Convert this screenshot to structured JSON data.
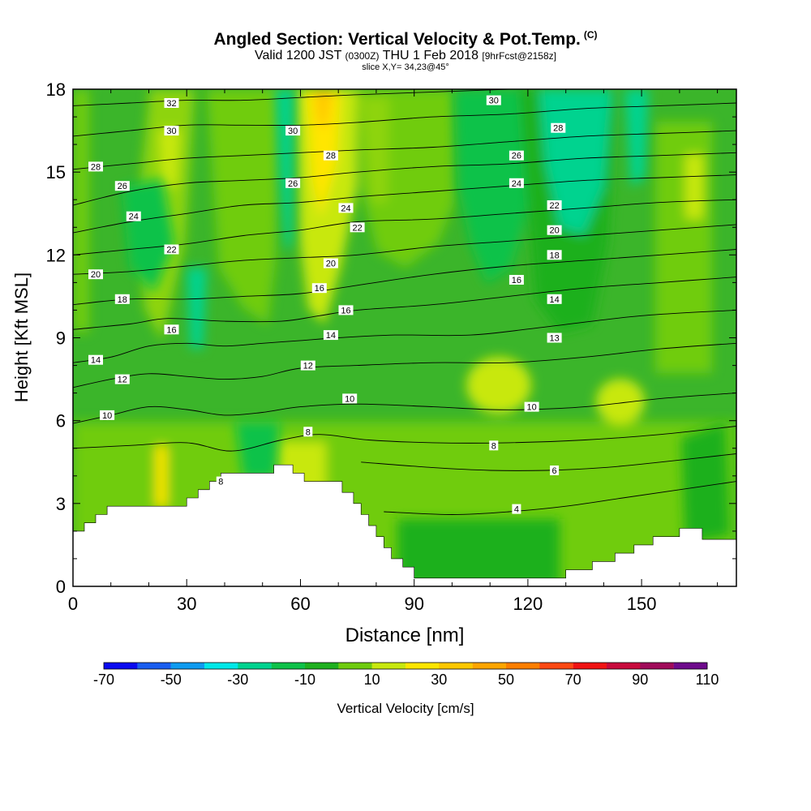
{
  "title": {
    "main": "Angled Section: Vertical Velocity & Pot.Temp.",
    "main_unit": "(C)",
    "valid_prefix": "Valid 1200 JST",
    "valid_utc": "(0300Z)",
    "valid_date": "THU 1 Feb 2018",
    "forecast": "[9hrFcst@2158z]",
    "slice": "slice X,Y= 34,23@45°"
  },
  "chart_data": {
    "type": "heatmap",
    "xlabel": "Distance [nm]",
    "ylabel": "Height [Kft MSL]",
    "xlim": [
      0,
      175
    ],
    "ylim": [
      0,
      18
    ],
    "x_ticks": [
      "0",
      "30",
      "60",
      "90",
      "120",
      "150"
    ],
    "y_ticks": [
      "0",
      "3",
      "6",
      "9",
      "12",
      "15",
      "18"
    ],
    "colorbar": {
      "label": "Vertical Velocity [cm/s]",
      "ticks": [
        "-70",
        "-50",
        "-30",
        "-10",
        "10",
        "30",
        "50",
        "70",
        "90",
        "110"
      ],
      "levels": [
        -70,
        -60,
        -50,
        -40,
        -30,
        -20,
        -10,
        0,
        10,
        20,
        30,
        40,
        50,
        60,
        70,
        80,
        90,
        100,
        110
      ],
      "colors": [
        "#0a0af0",
        "#1a5ef0",
        "#0f9bf0",
        "#00e8e8",
        "#00d38f",
        "#0fc24a",
        "#1fb01f",
        "#6fcc0f",
        "#c8e80f",
        "#ffe600",
        "#ffc800",
        "#ffa500",
        "#ff7f00",
        "#ff4a14",
        "#f01414",
        "#c80a3c",
        "#a00a5a",
        "#6e0a8c"
      ]
    },
    "terrain_kft": [
      [
        0,
        2
      ],
      [
        3,
        2
      ],
      [
        3,
        2.3
      ],
      [
        6,
        2.3
      ],
      [
        6,
        2.6
      ],
      [
        9,
        2.6
      ],
      [
        9,
        2.9
      ],
      [
        30,
        2.9
      ],
      [
        30,
        3.2
      ],
      [
        33,
        3.2
      ],
      [
        33,
        3.5
      ],
      [
        36,
        3.5
      ],
      [
        36,
        3.8
      ],
      [
        39,
        3.8
      ],
      [
        39,
        4.1
      ],
      [
        53,
        4.1
      ],
      [
        53,
        4.4
      ],
      [
        58,
        4.4
      ],
      [
        58,
        4.1
      ],
      [
        61,
        4.1
      ],
      [
        61,
        3.8
      ],
      [
        71,
        3.8
      ],
      [
        71,
        3.4
      ],
      [
        74,
        3.4
      ],
      [
        74,
        3.0
      ],
      [
        76,
        3.0
      ],
      [
        76,
        2.6
      ],
      [
        78,
        2.6
      ],
      [
        78,
        2.2
      ],
      [
        80,
        2.2
      ],
      [
        80,
        1.8
      ],
      [
        82,
        1.8
      ],
      [
        82,
        1.4
      ],
      [
        84,
        1.4
      ],
      [
        84,
        1.0
      ],
      [
        87,
        1.0
      ],
      [
        87,
        0.7
      ],
      [
        90,
        0.7
      ],
      [
        90,
        0.3
      ],
      [
        130,
        0.3
      ],
      [
        130,
        0.6
      ],
      [
        137,
        0.6
      ],
      [
        137,
        0.9
      ],
      [
        143,
        0.9
      ],
      [
        143,
        1.2
      ],
      [
        148,
        1.2
      ],
      [
        148,
        1.5
      ],
      [
        153,
        1.5
      ],
      [
        153,
        1.8
      ],
      [
        160,
        1.8
      ],
      [
        160,
        2.1
      ],
      [
        166,
        2.1
      ],
      [
        166,
        1.7
      ],
      [
        175,
        1.7
      ]
    ],
    "contours": [
      {
        "level": 4,
        "points": [
          [
            82,
            2.7
          ],
          [
            100,
            2.6
          ],
          [
            115,
            2.7
          ],
          [
            130,
            2.9
          ],
          [
            145,
            3.2
          ],
          [
            160,
            3.5
          ],
          [
            175,
            3.8
          ]
        ]
      },
      {
        "level": 6,
        "points": [
          [
            76,
            4.5
          ],
          [
            95,
            4.3
          ],
          [
            110,
            4.2
          ],
          [
            125,
            4.2
          ],
          [
            140,
            4.3
          ],
          [
            155,
            4.5
          ],
          [
            175,
            4.8
          ]
        ]
      },
      {
        "level": 8,
        "points": [
          [
            0,
            5.0
          ],
          [
            15,
            5.1
          ],
          [
            30,
            5.2
          ],
          [
            42,
            4.9
          ],
          [
            55,
            5.3
          ],
          [
            65,
            5.5
          ],
          [
            78,
            5.3
          ],
          [
            95,
            5.2
          ],
          [
            115,
            5.2
          ],
          [
            135,
            5.3
          ],
          [
            155,
            5.5
          ],
          [
            175,
            5.8
          ]
        ]
      },
      {
        "level": 10,
        "points": [
          [
            0,
            5.9
          ],
          [
            10,
            6.2
          ],
          [
            20,
            6.5
          ],
          [
            30,
            6.4
          ],
          [
            40,
            6.2
          ],
          [
            50,
            6.3
          ],
          [
            60,
            6.5
          ],
          [
            75,
            6.6
          ],
          [
            95,
            6.5
          ],
          [
            110,
            6.4
          ],
          [
            120,
            6.4
          ],
          [
            135,
            6.5
          ],
          [
            155,
            6.8
          ],
          [
            175,
            7.0
          ]
        ]
      },
      {
        "level": 12,
        "points": [
          [
            0,
            7.2
          ],
          [
            10,
            7.5
          ],
          [
            20,
            7.7
          ],
          [
            30,
            7.6
          ],
          [
            40,
            7.5
          ],
          [
            50,
            7.6
          ],
          [
            60,
            7.9
          ],
          [
            75,
            8.0
          ],
          [
            95,
            8.1
          ],
          [
            115,
            8.1
          ],
          [
            135,
            8.3
          ],
          [
            155,
            8.6
          ],
          [
            175,
            8.8
          ]
        ]
      },
      {
        "level": 14,
        "points": [
          [
            0,
            8.1
          ],
          [
            10,
            8.3
          ],
          [
            20,
            8.7
          ],
          [
            30,
            8.8
          ],
          [
            40,
            8.7
          ],
          [
            50,
            8.8
          ],
          [
            60,
            8.9
          ],
          [
            70,
            9.0
          ],
          [
            85,
            9.1
          ],
          [
            105,
            9.1
          ],
          [
            125,
            9.4
          ],
          [
            150,
            9.8
          ],
          [
            175,
            10.0
          ]
        ]
      },
      {
        "level": 16,
        "points": [
          [
            0,
            9.3
          ],
          [
            15,
            9.5
          ],
          [
            25,
            9.7
          ],
          [
            40,
            9.6
          ],
          [
            55,
            9.6
          ],
          [
            65,
            9.8
          ],
          [
            75,
            10.0
          ],
          [
            95,
            10.2
          ],
          [
            115,
            10.5
          ],
          [
            135,
            10.8
          ],
          [
            155,
            11.0
          ],
          [
            175,
            11.2
          ]
        ]
      },
      {
        "level": 18,
        "points": [
          [
            0,
            10.2
          ],
          [
            15,
            10.4
          ],
          [
            30,
            10.4
          ],
          [
            45,
            10.5
          ],
          [
            60,
            10.6
          ],
          [
            75,
            10.9
          ],
          [
            95,
            11.3
          ],
          [
            115,
            11.6
          ],
          [
            135,
            11.8
          ],
          [
            155,
            12.0
          ],
          [
            175,
            12.2
          ]
        ]
      },
      {
        "level": 20,
        "points": [
          [
            0,
            11.3
          ],
          [
            15,
            11.4
          ],
          [
            30,
            11.6
          ],
          [
            45,
            11.8
          ],
          [
            60,
            11.9
          ],
          [
            75,
            12.0
          ],
          [
            95,
            12.3
          ],
          [
            115,
            12.5
          ],
          [
            135,
            12.7
          ],
          [
            155,
            12.9
          ],
          [
            175,
            13.1
          ]
        ]
      },
      {
        "level": 22,
        "points": [
          [
            0,
            12.0
          ],
          [
            15,
            12.2
          ],
          [
            30,
            12.4
          ],
          [
            45,
            12.7
          ],
          [
            60,
            12.9
          ],
          [
            75,
            13.2
          ],
          [
            95,
            13.3
          ],
          [
            115,
            13.5
          ],
          [
            135,
            13.7
          ],
          [
            155,
            13.9
          ],
          [
            175,
            14.0
          ]
        ]
      },
      {
        "level": 24,
        "points": [
          [
            0,
            12.8
          ],
          [
            15,
            13.2
          ],
          [
            30,
            13.5
          ],
          [
            45,
            13.8
          ],
          [
            60,
            13.9
          ],
          [
            75,
            14.1
          ],
          [
            95,
            14.3
          ],
          [
            115,
            14.5
          ],
          [
            135,
            14.7
          ],
          [
            155,
            14.8
          ],
          [
            175,
            14.9
          ]
        ]
      },
      {
        "level": 26,
        "points": [
          [
            0,
            13.8
          ],
          [
            15,
            14.3
          ],
          [
            30,
            14.6
          ],
          [
            45,
            14.7
          ],
          [
            60,
            14.8
          ],
          [
            75,
            15.0
          ],
          [
            95,
            15.2
          ],
          [
            115,
            15.3
          ],
          [
            135,
            15.5
          ],
          [
            155,
            15.6
          ],
          [
            175,
            15.7
          ]
        ]
      },
      {
        "level": 28,
        "points": [
          [
            0,
            15.1
          ],
          [
            15,
            15.3
          ],
          [
            30,
            15.5
          ],
          [
            45,
            15.6
          ],
          [
            60,
            15.7
          ],
          [
            75,
            15.8
          ],
          [
            95,
            15.9
          ],
          [
            115,
            16.1
          ],
          [
            135,
            16.3
          ],
          [
            155,
            16.4
          ],
          [
            175,
            16.5
          ]
        ]
      },
      {
        "level": 30,
        "points": [
          [
            0,
            16.3
          ],
          [
            15,
            16.5
          ],
          [
            30,
            16.7
          ],
          [
            45,
            16.7
          ],
          [
            60,
            16.7
          ],
          [
            75,
            16.8
          ],
          [
            95,
            17.0
          ],
          [
            115,
            17.1
          ],
          [
            135,
            17.3
          ],
          [
            155,
            17.4
          ],
          [
            175,
            17.5
          ]
        ]
      },
      {
        "level": 32,
        "points": [
          [
            0,
            17.4
          ],
          [
            15,
            17.5
          ],
          [
            30,
            17.6
          ],
          [
            45,
            17.6
          ],
          [
            60,
            17.7
          ],
          [
            75,
            17.8
          ],
          [
            95,
            17.9
          ],
          [
            115,
            18.0
          ]
        ]
      }
    ],
    "contour_labels": [
      {
        "text": "32",
        "x": 26,
        "y": 17.5
      },
      {
        "text": "30",
        "x": 26,
        "y": 16.5
      },
      {
        "text": "30",
        "x": 58,
        "y": 16.5
      },
      {
        "text": "30",
        "x": 111,
        "y": 17.6
      },
      {
        "text": "28",
        "x": 128,
        "y": 16.6
      },
      {
        "text": "28",
        "x": 6,
        "y": 15.2
      },
      {
        "text": "28",
        "x": 68,
        "y": 15.6
      },
      {
        "text": "26",
        "x": 13,
        "y": 14.5
      },
      {
        "text": "26",
        "x": 58,
        "y": 14.6
      },
      {
        "text": "26",
        "x": 117,
        "y": 15.6
      },
      {
        "text": "24",
        "x": 16,
        "y": 13.4
      },
      {
        "text": "24",
        "x": 72,
        "y": 13.7
      },
      {
        "text": "24",
        "x": 117,
        "y": 14.6
      },
      {
        "text": "22",
        "x": 26,
        "y": 12.2
      },
      {
        "text": "22",
        "x": 75,
        "y": 13.0
      },
      {
        "text": "22",
        "x": 127,
        "y": 13.8
      },
      {
        "text": "20",
        "x": 6,
        "y": 11.3
      },
      {
        "text": "20",
        "x": 68,
        "y": 11.7
      },
      {
        "text": "20",
        "x": 127,
        "y": 12.9
      },
      {
        "text": "18",
        "x": 13,
        "y": 10.4
      },
      {
        "text": "18",
        "x": 127,
        "y": 12.0
      },
      {
        "text": "16",
        "x": 26,
        "y": 9.3
      },
      {
        "text": "16",
        "x": 65,
        "y": 10.8
      },
      {
        "text": "16",
        "x": 72,
        "y": 10.0
      },
      {
        "text": "16",
        "x": 117,
        "y": 11.1
      },
      {
        "text": "14",
        "x": 6,
        "y": 8.2
      },
      {
        "text": "14",
        "x": 68,
        "y": 9.1
      },
      {
        "text": "14",
        "x": 127,
        "y": 10.4
      },
      {
        "text": "13",
        "x": 127,
        "y": 9.0
      },
      {
        "text": "12",
        "x": 13,
        "y": 7.5
      },
      {
        "text": "12",
        "x": 62,
        "y": 8.0
      },
      {
        "text": "10",
        "x": 9,
        "y": 6.2
      },
      {
        "text": "10",
        "x": 73,
        "y": 6.8
      },
      {
        "text": "10",
        "x": 121,
        "y": 6.5
      },
      {
        "text": "8",
        "x": 62,
        "y": 5.6
      },
      {
        "text": "8",
        "x": 111,
        "y": 5.1
      },
      {
        "text": "8",
        "x": 39,
        "y": 3.8
      },
      {
        "text": "6",
        "x": 127,
        "y": 4.2
      },
      {
        "text": "4",
        "x": 117,
        "y": 2.8
      }
    ]
  }
}
